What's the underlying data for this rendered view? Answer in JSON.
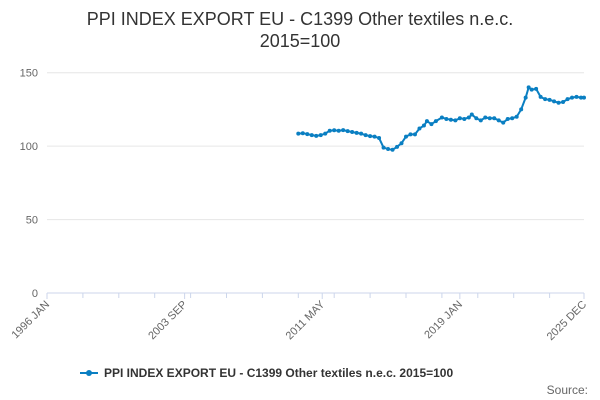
{
  "chart_data": {
    "type": "line",
    "title_line1": "PPI INDEX EXPORT EU - C1399 Other textiles n.e.c.",
    "title_line2": "2015=100",
    "xlabel": "",
    "ylabel": "",
    "ylim": [
      0,
      160
    ],
    "yticks": [
      "0",
      "50",
      "100",
      "150"
    ],
    "xlim": [
      "1996-01",
      "2025-12"
    ],
    "xticks": [
      "1996 JAN",
      "2003 SEP",
      "2011 MAY",
      "2019 JAN",
      "2025 DEC"
    ],
    "grid": true,
    "legend_position": "bottom",
    "series": [
      {
        "name": "PPI INDEX EXPORT EU - C1399 Other textiles n.e.c. 2015=100",
        "color": "#0a7fc2",
        "points": [
          [
            "2010-01",
            108.5
          ],
          [
            "2010-04",
            108.8
          ],
          [
            "2010-07",
            108.2
          ],
          [
            "2010-10",
            107.5
          ],
          [
            "2011-01",
            107.0
          ],
          [
            "2011-04",
            107.5
          ],
          [
            "2011-07",
            108.5
          ],
          [
            "2011-10",
            110.5
          ],
          [
            "2012-01",
            110.8
          ],
          [
            "2012-04",
            110.5
          ],
          [
            "2012-07",
            110.9
          ],
          [
            "2012-10",
            110.2
          ],
          [
            "2013-01",
            109.6
          ],
          [
            "2013-04",
            109.0
          ],
          [
            "2013-07",
            108.5
          ],
          [
            "2013-10",
            107.5
          ],
          [
            "2014-01",
            106.8
          ],
          [
            "2014-04",
            106.5
          ],
          [
            "2014-07",
            105.5
          ],
          [
            "2014-10",
            99.0
          ],
          [
            "2015-01",
            98.0
          ],
          [
            "2015-04",
            97.5
          ],
          [
            "2015-07",
            99.5
          ],
          [
            "2015-10",
            102.0
          ],
          [
            "2016-01",
            106.5
          ],
          [
            "2016-04",
            108.0
          ],
          [
            "2016-07",
            108.0
          ],
          [
            "2016-10",
            112.0
          ],
          [
            "2017-01",
            114.0
          ],
          [
            "2017-03",
            117.0
          ],
          [
            "2017-06",
            115.0
          ],
          [
            "2017-09",
            117.0
          ],
          [
            "2018-01",
            119.5
          ],
          [
            "2018-04",
            118.5
          ],
          [
            "2018-07",
            118.0
          ],
          [
            "2018-10",
            117.5
          ],
          [
            "2019-01",
            119.0
          ],
          [
            "2019-04",
            118.5
          ],
          [
            "2019-07",
            119.5
          ],
          [
            "2019-09",
            121.5
          ],
          [
            "2019-12",
            119.0
          ],
          [
            "2020-03",
            117.5
          ],
          [
            "2020-06",
            119.5
          ],
          [
            "2020-09",
            119.0
          ],
          [
            "2020-12",
            119.0
          ],
          [
            "2021-03",
            117.5
          ],
          [
            "2021-06",
            116.0
          ],
          [
            "2021-09",
            118.5
          ],
          [
            "2021-12",
            119.0
          ],
          [
            "2022-03",
            120.0
          ],
          [
            "2022-06",
            125.0
          ],
          [
            "2022-09",
            133.0
          ],
          [
            "2022-11",
            140.0
          ],
          [
            "2023-01",
            138.5
          ],
          [
            "2023-04",
            139.0
          ],
          [
            "2023-07",
            133.5
          ],
          [
            "2023-10",
            132.0
          ],
          [
            "2024-01",
            131.5
          ],
          [
            "2024-04",
            130.5
          ],
          [
            "2024-07",
            129.5
          ],
          [
            "2024-10",
            130.0
          ],
          [
            "2025-01",
            132.0
          ],
          [
            "2025-04",
            133.0
          ],
          [
            "2025-07",
            133.5
          ],
          [
            "2025-10",
            133.0
          ],
          [
            "2025-12",
            133.0
          ]
        ]
      }
    ]
  },
  "footer": {
    "source_label": "Source:"
  }
}
